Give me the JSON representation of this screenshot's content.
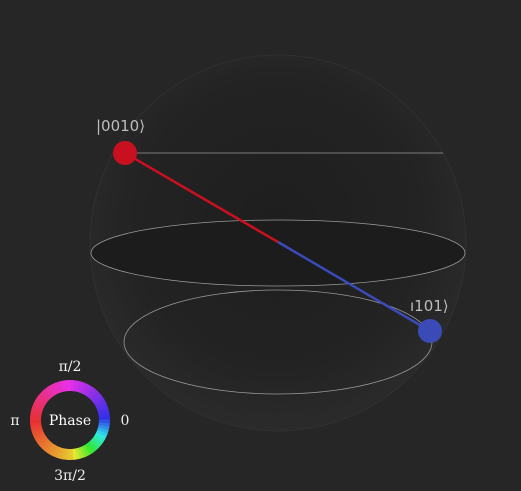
{
  "states": [
    {
      "label": "|0010⟩",
      "color": "#c8101f"
    },
    {
      "label": "ı101⟩",
      "color": "#3a4bb8"
    }
  ],
  "phase_wheel": {
    "center_label": "Phase",
    "label_top": "π/2",
    "label_left": "π",
    "label_right": "0",
    "label_bottom": "3π/2"
  },
  "colors": {
    "background": "#262626",
    "line_red": "#c8101f",
    "line_blue": "#3a4bb8"
  }
}
